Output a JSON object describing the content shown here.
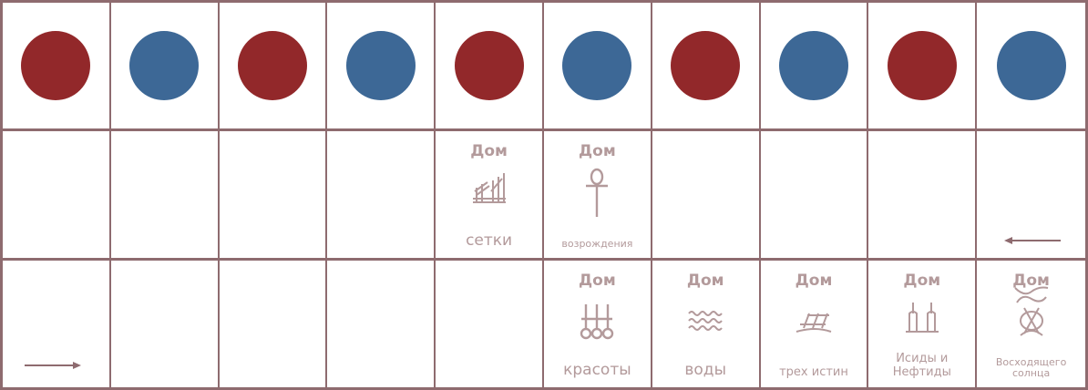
{
  "board": {
    "colors": {
      "red": "#92282a",
      "blue": "#3d6896",
      "grid": "#8e6b6f",
      "label": "#b39a9b"
    },
    "pieces": [
      "red",
      "blue",
      "red",
      "blue",
      "red",
      "blue",
      "red",
      "blue",
      "red",
      "blue"
    ],
    "houses": {
      "nets": {
        "prefix": "Дом",
        "name": "сетки",
        "icon": "nets-icon"
      },
      "rebirth": {
        "prefix": "Дом",
        "name": "возрождения",
        "icon": "ankh-icon"
      },
      "beauty": {
        "prefix": "Дом",
        "name": "красоты",
        "icon": "beauty-icon"
      },
      "water": {
        "prefix": "Дом",
        "name": "воды",
        "icon": "water-icon"
      },
      "three_truths": {
        "prefix": "Дом",
        "name": "трех истин",
        "icon": "three-truths-icon"
      },
      "isis_nephthys": {
        "prefix": "Дом",
        "name": "Исиды и Нефтиды",
        "icon": "isis-nephthys-icon"
      },
      "rising_sun": {
        "prefix": "Дом",
        "name": "Восходящего солнца",
        "icon": "rising-sun-icon"
      }
    },
    "arrows": {
      "row2": "arrow-left-icon",
      "row3": "arrow-right-icon"
    }
  }
}
